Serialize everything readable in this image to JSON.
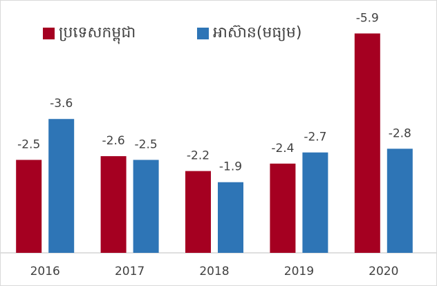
{
  "chart_data": {
    "type": "bar",
    "categories": [
      "2016",
      "2017",
      "2018",
      "2019",
      "2020"
    ],
    "series": [
      {
        "name": "ប្រទេសកម្ពុជា",
        "color": "#a50021",
        "values": [
          -2.5,
          -2.6,
          -2.2,
          -2.4,
          -5.9
        ]
      },
      {
        "name": "អាស៊ាន(មធ្យម)",
        "color": "#2e75b6",
        "values": [
          -3.6,
          -2.5,
          -1.9,
          -2.7,
          -2.8
        ]
      }
    ],
    "ylim": [
      0,
      -6.8
    ],
    "legend": "top"
  }
}
